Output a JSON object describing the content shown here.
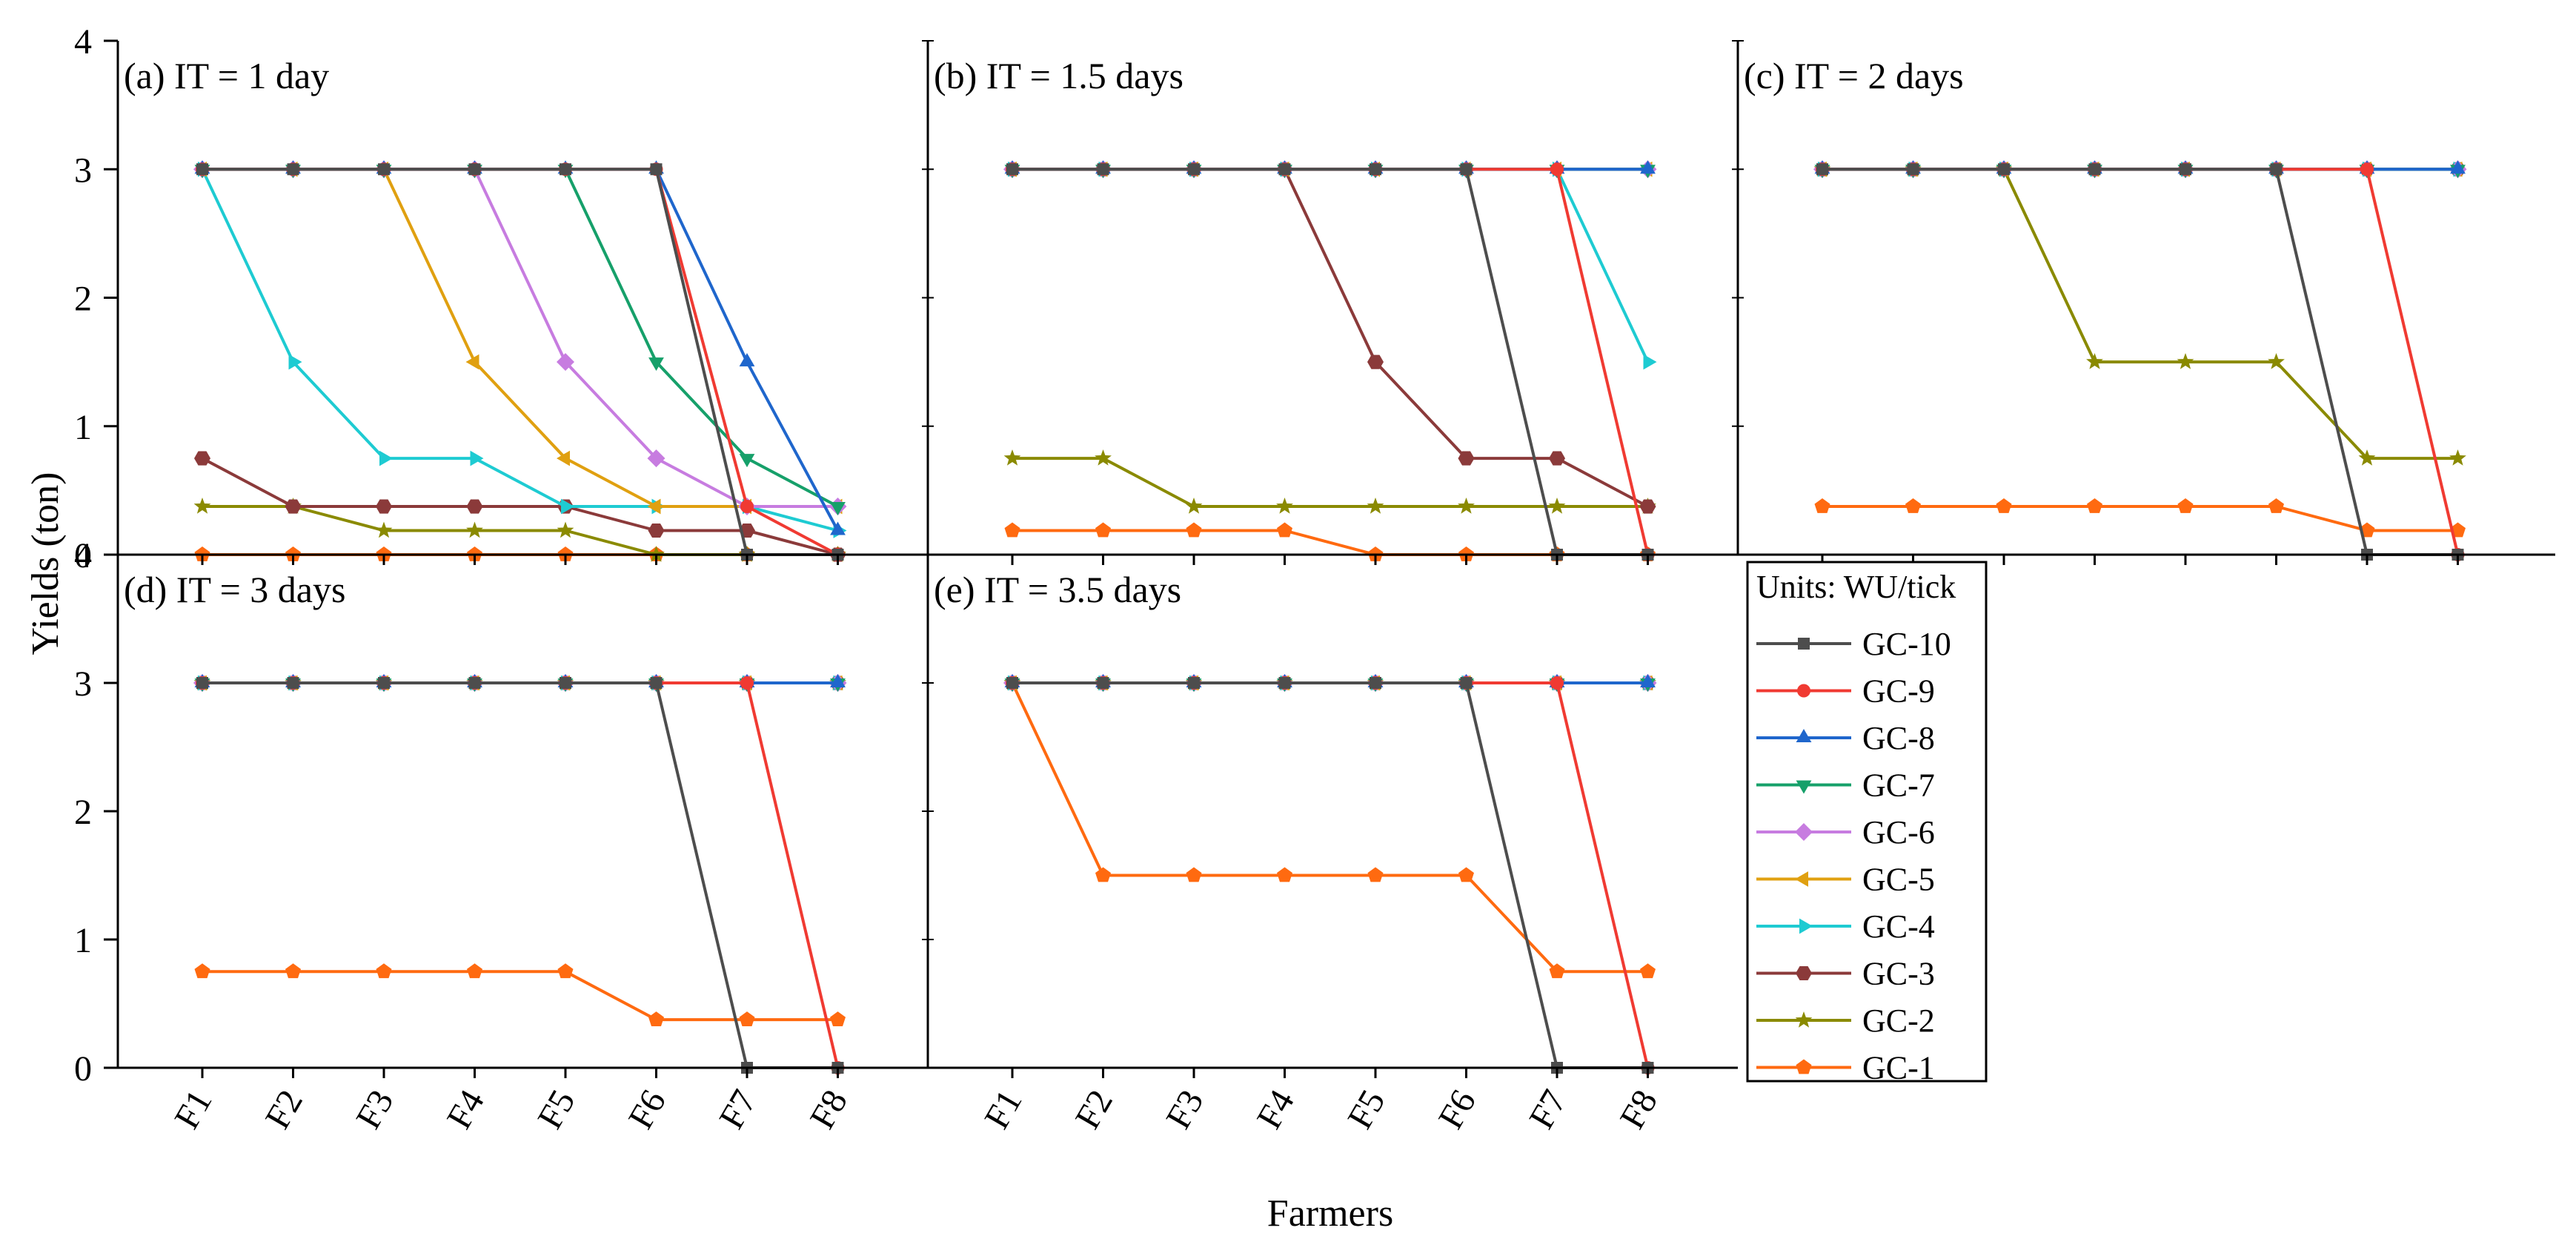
{
  "chart_data": {
    "type": "line",
    "xlabel": "Farmers",
    "ylabel": "Yields (ton)",
    "categories": [
      "F1",
      "F2",
      "F3",
      "F4",
      "F5",
      "F6",
      "F7",
      "F8"
    ],
    "ylim": [
      0,
      4
    ],
    "yticks": [
      "0",
      "1",
      "2",
      "3",
      "4"
    ],
    "grid": false,
    "legend": {
      "title": "Units: WU/tick",
      "placement": "right of panel (d), below panel (c)",
      "entries": [
        {
          "name": "GC-10",
          "color": "#4D4D4D",
          "marker": "square"
        },
        {
          "name": "GC-9",
          "color": "#F03A32",
          "marker": "circle"
        },
        {
          "name": "GC-8",
          "color": "#1F66CC",
          "marker": "triangle-up"
        },
        {
          "name": "GC-7",
          "color": "#16A06A",
          "marker": "triangle-down"
        },
        {
          "name": "GC-6",
          "color": "#C77CE0",
          "marker": "diamond"
        },
        {
          "name": "GC-5",
          "color": "#E0A010",
          "marker": "triangle-left"
        },
        {
          "name": "GC-4",
          "color": "#1ECBD2",
          "marker": "triangle-right"
        },
        {
          "name": "GC-3",
          "color": "#8B3A3A",
          "marker": "hexagon"
        },
        {
          "name": "GC-2",
          "color": "#8A8A00",
          "marker": "star"
        },
        {
          "name": "GC-1",
          "color": "#FF6A10",
          "marker": "pentagon"
        }
      ]
    },
    "panels": [
      {
        "title": "(a) IT = 1 day",
        "series": [
          {
            "name": "GC-10",
            "values": [
              3,
              3,
              3,
              3,
              3,
              3,
              0,
              0
            ]
          },
          {
            "name": "GC-9",
            "values": [
              3,
              3,
              3,
              3,
              3,
              3,
              0.375,
              0
            ]
          },
          {
            "name": "GC-8",
            "values": [
              3,
              3,
              3,
              3,
              3,
              3,
              1.5,
              0.1875
            ]
          },
          {
            "name": "GC-7",
            "values": [
              3,
              3,
              3,
              3,
              3,
              1.5,
              0.75,
              0.375
            ]
          },
          {
            "name": "GC-6",
            "values": [
              3,
              3,
              3,
              3,
              1.5,
              0.75,
              0.375,
              0.375
            ]
          },
          {
            "name": "GC-5",
            "values": [
              3,
              3,
              3,
              1.5,
              0.75,
              0.375,
              0.375,
              0.375
            ]
          },
          {
            "name": "GC-4",
            "values": [
              3,
              1.5,
              0.75,
              0.75,
              0.375,
              0.375,
              0.375,
              0.1875
            ]
          },
          {
            "name": "GC-3",
            "values": [
              0.75,
              0.375,
              0.375,
              0.375,
              0.375,
              0.1875,
              0.1875,
              0
            ]
          },
          {
            "name": "GC-2",
            "values": [
              0.375,
              0.375,
              0.1875,
              0.1875,
              0.1875,
              0,
              0,
              0
            ]
          },
          {
            "name": "GC-1",
            "values": [
              0,
              0,
              0,
              0,
              0,
              0,
              0,
              0
            ]
          }
        ]
      },
      {
        "title": "(b) IT = 1.5 days",
        "series": [
          {
            "name": "GC-10",
            "values": [
              3,
              3,
              3,
              3,
              3,
              3,
              0,
              0
            ]
          },
          {
            "name": "GC-9",
            "values": [
              3,
              3,
              3,
              3,
              3,
              3,
              3,
              0
            ]
          },
          {
            "name": "GC-8",
            "values": [
              3,
              3,
              3,
              3,
              3,
              3,
              3,
              3
            ]
          },
          {
            "name": "GC-7",
            "values": [
              3,
              3,
              3,
              3,
              3,
              3,
              3,
              3
            ]
          },
          {
            "name": "GC-6",
            "values": [
              3,
              3,
              3,
              3,
              3,
              3,
              3,
              3
            ]
          },
          {
            "name": "GC-5",
            "values": [
              3,
              3,
              3,
              3,
              3,
              3,
              3,
              3
            ]
          },
          {
            "name": "GC-4",
            "values": [
              3,
              3,
              3,
              3,
              3,
              3,
              3,
              1.5
            ]
          },
          {
            "name": "GC-3",
            "values": [
              3,
              3,
              3,
              3,
              1.5,
              0.75,
              0.75,
              0.375
            ]
          },
          {
            "name": "GC-2",
            "values": [
              0.75,
              0.75,
              0.375,
              0.375,
              0.375,
              0.375,
              0.375,
              0.375
            ]
          },
          {
            "name": "GC-1",
            "values": [
              0.1875,
              0.1875,
              0.1875,
              0.1875,
              0,
              0,
              0,
              0
            ]
          }
        ]
      },
      {
        "title": "(c) IT = 2 days",
        "series": [
          {
            "name": "GC-10",
            "values": [
              3,
              3,
              3,
              3,
              3,
              3,
              0,
              0
            ]
          },
          {
            "name": "GC-9",
            "values": [
              3,
              3,
              3,
              3,
              3,
              3,
              3,
              0
            ]
          },
          {
            "name": "GC-8",
            "values": [
              3,
              3,
              3,
              3,
              3,
              3,
              3,
              3
            ]
          },
          {
            "name": "GC-7",
            "values": [
              3,
              3,
              3,
              3,
              3,
              3,
              3,
              3
            ]
          },
          {
            "name": "GC-6",
            "values": [
              3,
              3,
              3,
              3,
              3,
              3,
              3,
              3
            ]
          },
          {
            "name": "GC-5",
            "values": [
              3,
              3,
              3,
              3,
              3,
              3,
              3,
              3
            ]
          },
          {
            "name": "GC-4",
            "values": [
              3,
              3,
              3,
              3,
              3,
              3,
              3,
              3
            ]
          },
          {
            "name": "GC-3",
            "values": [
              3,
              3,
              3,
              3,
              3,
              3,
              3,
              3
            ]
          },
          {
            "name": "GC-2",
            "values": [
              3,
              3,
              3,
              1.5,
              1.5,
              1.5,
              0.75,
              0.75
            ]
          },
          {
            "name": "GC-1",
            "values": [
              0.375,
              0.375,
              0.375,
              0.375,
              0.375,
              0.375,
              0.1875,
              0.1875
            ]
          }
        ]
      },
      {
        "title": "(d) IT = 3 days",
        "series": [
          {
            "name": "GC-10",
            "values": [
              3,
              3,
              3,
              3,
              3,
              3,
              0,
              0
            ]
          },
          {
            "name": "GC-9",
            "values": [
              3,
              3,
              3,
              3,
              3,
              3,
              3,
              0
            ]
          },
          {
            "name": "GC-8",
            "values": [
              3,
              3,
              3,
              3,
              3,
              3,
              3,
              3
            ]
          },
          {
            "name": "GC-7",
            "values": [
              3,
              3,
              3,
              3,
              3,
              3,
              3,
              3
            ]
          },
          {
            "name": "GC-6",
            "values": [
              3,
              3,
              3,
              3,
              3,
              3,
              3,
              3
            ]
          },
          {
            "name": "GC-5",
            "values": [
              3,
              3,
              3,
              3,
              3,
              3,
              3,
              3
            ]
          },
          {
            "name": "GC-4",
            "values": [
              3,
              3,
              3,
              3,
              3,
              3,
              3,
              3
            ]
          },
          {
            "name": "GC-3",
            "values": [
              3,
              3,
              3,
              3,
              3,
              3,
              3,
              3
            ]
          },
          {
            "name": "GC-2",
            "values": [
              3,
              3,
              3,
              3,
              3,
              3,
              3,
              3
            ]
          },
          {
            "name": "GC-1",
            "values": [
              0.75,
              0.75,
              0.75,
              0.75,
              0.75,
              0.375,
              0.375,
              0.375
            ]
          }
        ]
      },
      {
        "title": "(e) IT = 3.5 days",
        "series": [
          {
            "name": "GC-10",
            "values": [
              3,
              3,
              3,
              3,
              3,
              3,
              0,
              0
            ]
          },
          {
            "name": "GC-9",
            "values": [
              3,
              3,
              3,
              3,
              3,
              3,
              3,
              0
            ]
          },
          {
            "name": "GC-8",
            "values": [
              3,
              3,
              3,
              3,
              3,
              3,
              3,
              3
            ]
          },
          {
            "name": "GC-7",
            "values": [
              3,
              3,
              3,
              3,
              3,
              3,
              3,
              3
            ]
          },
          {
            "name": "GC-6",
            "values": [
              3,
              3,
              3,
              3,
              3,
              3,
              3,
              3
            ]
          },
          {
            "name": "GC-5",
            "values": [
              3,
              3,
              3,
              3,
              3,
              3,
              3,
              3
            ]
          },
          {
            "name": "GC-4",
            "values": [
              3,
              3,
              3,
              3,
              3,
              3,
              3,
              3
            ]
          },
          {
            "name": "GC-3",
            "values": [
              3,
              3,
              3,
              3,
              3,
              3,
              3,
              3
            ]
          },
          {
            "name": "GC-2",
            "values": [
              3,
              3,
              3,
              3,
              3,
              3,
              3,
              3
            ]
          },
          {
            "name": "GC-1",
            "values": [
              3,
              1.5,
              1.5,
              1.5,
              1.5,
              1.5,
              0.75,
              0.75
            ]
          }
        ]
      }
    ]
  }
}
